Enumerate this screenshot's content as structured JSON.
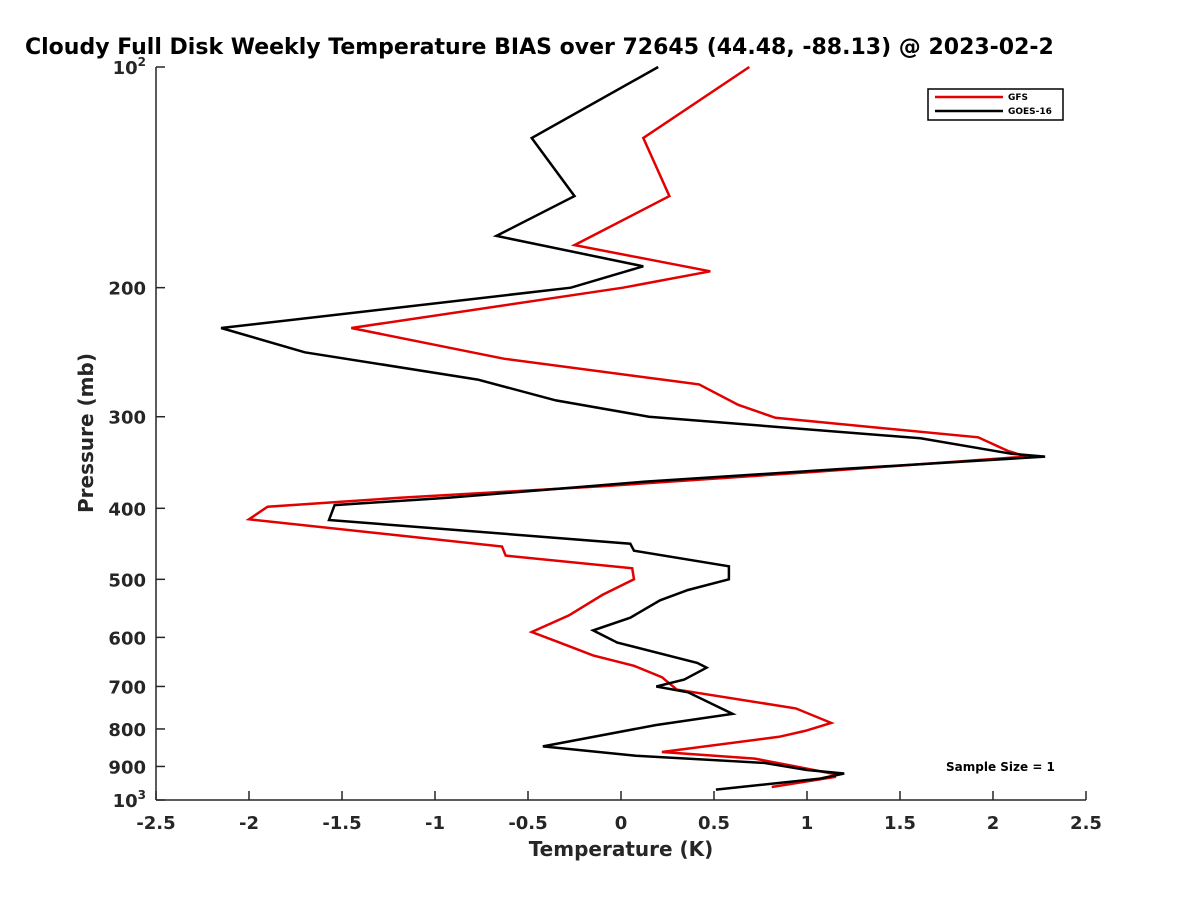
{
  "chart_data": {
    "type": "line",
    "title": "Cloudy Full Disk Weekly Temperature BIAS over 72645 (44.48, -88.13) @ 2023-02-2",
    "xlabel": "Temperature (K)",
    "ylabel": "Pressure (mb)",
    "xlim": [
      -2.5,
      2.5
    ],
    "ylim": [
      100,
      1000
    ],
    "y_scale": "log",
    "y_reversed": true,
    "x_ticks": [
      "-2.5",
      "-2",
      "-1.5",
      "-1",
      "-0.5",
      "0",
      "0.5",
      "1",
      "1.5",
      "2",
      "2.5"
    ],
    "y_ticks": [
      {
        "base": "10",
        "sup": "2"
      },
      {
        "base": "200",
        "sup": ""
      },
      {
        "base": "300",
        "sup": ""
      },
      {
        "base": "400",
        "sup": ""
      },
      {
        "base": "500",
        "sup": ""
      },
      {
        "base": "600",
        "sup": ""
      },
      {
        "base": "700",
        "sup": ""
      },
      {
        "base": "800",
        "sup": ""
      },
      {
        "base": "900",
        "sup": ""
      },
      {
        "base": "10",
        "sup": "3"
      }
    ],
    "grid": false,
    "legend_position": "top-right",
    "annotation": "Sample Size = 1",
    "series": [
      {
        "name": "GFS",
        "color": "#e30000",
        "points": [
          [
            0.69,
            100
          ],
          [
            0.12,
            125
          ],
          [
            0.26,
            150
          ],
          [
            -0.25,
            175
          ],
          [
            0.48,
            190
          ],
          [
            0.01,
            200
          ],
          [
            -1.45,
            227
          ],
          [
            -0.63,
            250
          ],
          [
            0.42,
            271
          ],
          [
            0.63,
            289
          ],
          [
            0.83,
            301
          ],
          [
            1.92,
            320
          ],
          [
            2.08,
            334
          ],
          [
            2.18,
            340
          ],
          [
            1.02,
            357
          ],
          [
            -0.09,
            373
          ],
          [
            -1.19,
            387
          ],
          [
            -1.9,
            398
          ],
          [
            -2.0,
            414
          ],
          [
            -0.64,
            451
          ],
          [
            -0.62,
            464
          ],
          [
            0.06,
            483
          ],
          [
            0.07,
            500
          ],
          [
            -0.1,
            525
          ],
          [
            -0.28,
            560
          ],
          [
            -0.48,
            590
          ],
          [
            -0.33,
            610
          ],
          [
            -0.15,
            635
          ],
          [
            0.07,
            656
          ],
          [
            0.22,
            680
          ],
          [
            0.3,
            707
          ],
          [
            0.94,
            750
          ],
          [
            1.13,
            785
          ],
          [
            0.99,
            805
          ],
          [
            0.85,
            820
          ],
          [
            0.22,
            860
          ],
          [
            0.72,
            878
          ],
          [
            0.94,
            900
          ],
          [
            1.15,
            922
          ],
          [
            1.15,
            930
          ],
          [
            0.81,
            960
          ]
        ]
      },
      {
        "name": "GOES-16",
        "color": "#000000",
        "points": [
          [
            0.2,
            100
          ],
          [
            -0.48,
            125
          ],
          [
            -0.25,
            150
          ],
          [
            -0.67,
            170
          ],
          [
            0.12,
            187
          ],
          [
            -0.27,
            200
          ],
          [
            -2.15,
            227
          ],
          [
            -1.7,
            245
          ],
          [
            -0.77,
            267
          ],
          [
            -0.35,
            285
          ],
          [
            0.15,
            300
          ],
          [
            1.61,
            321
          ],
          [
            2.1,
            337
          ],
          [
            2.28,
            340
          ],
          [
            1.15,
            354
          ],
          [
            0.12,
            368
          ],
          [
            -0.93,
            387
          ],
          [
            -1.54,
            396
          ],
          [
            -1.57,
            415
          ],
          [
            0.05,
            447
          ],
          [
            0.07,
            457
          ],
          [
            0.58,
            480
          ],
          [
            0.58,
            500
          ],
          [
            0.36,
            517
          ],
          [
            0.21,
            534
          ],
          [
            0.05,
            564
          ],
          [
            -0.15,
            587
          ],
          [
            -0.02,
            610
          ],
          [
            0.41,
            650
          ],
          [
            0.46,
            660
          ],
          [
            0.34,
            685
          ],
          [
            0.19,
            700
          ],
          [
            0.36,
            713
          ],
          [
            0.6,
            763
          ],
          [
            0.19,
            790
          ],
          [
            -0.42,
            845
          ],
          [
            0.08,
            870
          ],
          [
            0.77,
            890
          ],
          [
            1.0,
            910
          ],
          [
            1.2,
            920
          ],
          [
            1.07,
            935
          ],
          [
            0.51,
            968
          ]
        ]
      }
    ]
  }
}
